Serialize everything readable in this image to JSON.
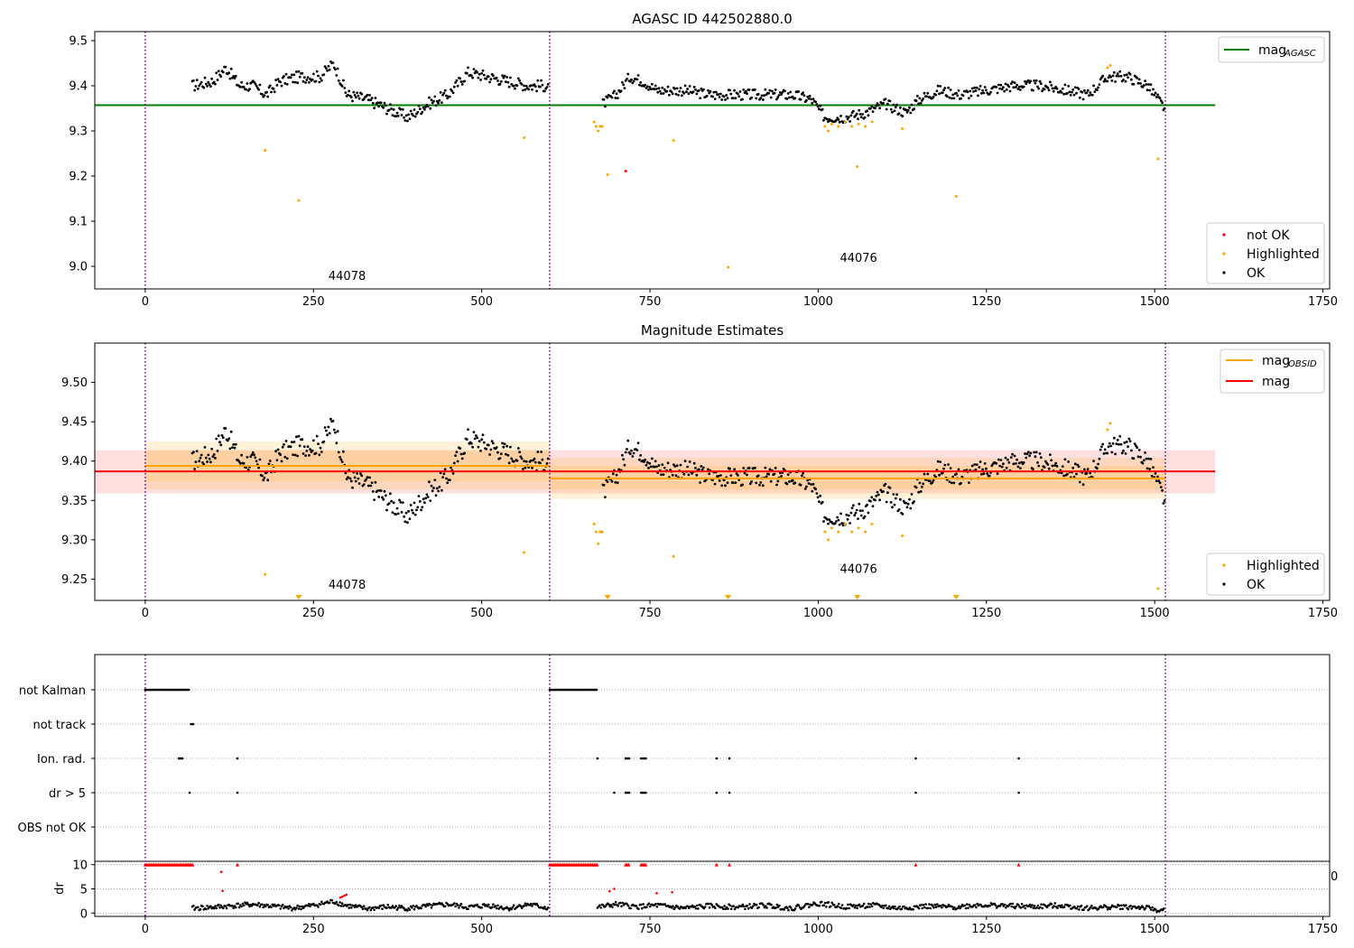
{
  "chart_data": [
    {
      "type": "scatter",
      "title": "AGASC ID 442502880.0",
      "xlim": [
        -75,
        1760
      ],
      "ylim": [
        8.95,
        9.52
      ],
      "xticks": [
        0,
        250,
        500,
        750,
        1000,
        1250,
        1500,
        1750
      ],
      "yticks": [
        9.0,
        9.1,
        9.2,
        9.3,
        9.4,
        9.5
      ],
      "ytick_labels": [
        "9.0",
        "9.1",
        "9.2",
        "9.3",
        "9.4",
        "9.5"
      ],
      "obs_boundaries": [
        0,
        601,
        1516
      ],
      "hlines": [
        {
          "name": "mag_AGASC",
          "label_main": "mag",
          "label_sub": "AGASC",
          "y": 9.357,
          "x": [
            -75,
            1590
          ],
          "color": "#008000"
        }
      ],
      "annotations": [
        {
          "text": "44078",
          "x": 300,
          "y": 8.97
        },
        {
          "text": "44076",
          "x": 1060,
          "y": 9.01
        }
      ],
      "legend_top": [
        "mag_AGASC"
      ],
      "legend_bottom": [
        {
          "label": "not OK",
          "color": "#ff0000"
        },
        {
          "label": "Highlighted",
          "color": "#ffa500"
        },
        {
          "label": "OK",
          "color": "#000000"
        }
      ],
      "series": [
        {
          "name": "OK",
          "color": "#000000",
          "segments": [
            {
              "x": [
                70,
                100,
                120,
                140,
                160,
                180,
                200,
                230,
                260,
                280,
                300,
                330,
                360,
                390,
                420,
                450,
                480,
                510,
                540,
                570,
                600
              ],
              "y": [
                9.4,
                9.41,
                9.44,
                9.4,
                9.4,
                9.38,
                9.41,
                9.42,
                9.42,
                9.45,
                9.38,
                9.37,
                9.35,
                9.33,
                9.36,
                9.38,
                9.43,
                9.42,
                9.41,
                9.4,
                9.4
              ],
              "jitter": 0.013,
              "step": 1.7
            },
            {
              "x": [
                680,
                700,
                720,
                740,
                760,
                800,
                840,
                880,
                920,
                960,
                990,
                1010,
                1040,
                1070,
                1100,
                1130,
                1150,
                1180,
                1210,
                1250,
                1290,
                1330,
                1370,
                1400,
                1430,
                1460,
                1490,
                1515
              ],
              "y": [
                9.36,
                9.38,
                9.42,
                9.41,
                9.39,
                9.39,
                9.38,
                9.38,
                9.38,
                9.38,
                9.37,
                9.33,
                9.33,
                9.34,
                9.36,
                9.34,
                9.37,
                9.39,
                9.38,
                9.39,
                9.4,
                9.4,
                9.39,
                9.38,
                9.42,
                9.42,
                9.4,
                9.35
              ],
              "jitter": 0.012,
              "step": 1.7
            }
          ]
        },
        {
          "name": "Highlighted",
          "color": "#ffa500",
          "x": [
            178,
            228,
            563,
            667,
            670,
            673,
            676,
            679,
            687,
            785,
            866,
            1010,
            1015,
            1020,
            1030,
            1040,
            1050,
            1060,
            1070,
            1080,
            1125,
            1058,
            1205,
            1430,
            1434,
            1505
          ],
          "y": [
            9.257,
            9.146,
            9.285,
            9.32,
            9.31,
            9.3,
            9.31,
            9.31,
            9.203,
            9.279,
            8.998,
            9.31,
            9.3,
            9.315,
            9.31,
            9.32,
            9.31,
            9.315,
            9.31,
            9.32,
            9.305,
            9.221,
            9.155,
            9.44,
            9.445,
            9.238
          ]
        },
        {
          "name": "not OK",
          "color": "#ff0000",
          "x": [
            714
          ],
          "y": [
            9.211
          ]
        }
      ]
    },
    {
      "type": "scatter",
      "title": "Magnitude Estimates",
      "xlim": [
        -75,
        1760
      ],
      "ylim": [
        9.223,
        9.55
      ],
      "xticks": [
        0,
        250,
        500,
        750,
        1000,
        1250,
        1500,
        1750
      ],
      "yticks": [
        9.25,
        9.3,
        9.35,
        9.4,
        9.45,
        9.5
      ],
      "ytick_labels": [
        "9.25",
        "9.30",
        "9.35",
        "9.40",
        "9.45",
        "9.50"
      ],
      "obs_boundaries": [
        0,
        601,
        1516
      ],
      "bands": [
        {
          "x": [
            -75,
            1590
          ],
          "y": [
            9.359,
            9.414
          ],
          "color": "#ff0000",
          "opacity": 0.12
        },
        {
          "x": [
            0,
            601
          ],
          "y": [
            9.364,
            9.425
          ],
          "color": "#ffa500",
          "opacity": 0.15
        },
        {
          "x": [
            0,
            601
          ],
          "y": [
            9.374,
            9.413
          ],
          "color": "#ffa500",
          "opacity": 0.15
        },
        {
          "x": [
            601,
            1516
          ],
          "y": [
            9.352,
            9.404
          ],
          "color": "#ffa500",
          "opacity": 0.15
        },
        {
          "x": [
            601,
            1516
          ],
          "y": [
            9.364,
            9.394
          ],
          "color": "#ffa500",
          "opacity": 0.15
        }
      ],
      "hlines": [
        {
          "name": "mag",
          "y": 9.387,
          "x": [
            -75,
            1590
          ],
          "color": "#ff0000"
        },
        {
          "name": "mag_OBSID_1",
          "y": 9.394,
          "x": [
            0,
            601
          ],
          "color": "#ffa500"
        },
        {
          "name": "mag_OBSID_2",
          "y": 9.378,
          "x": [
            601,
            1516
          ],
          "color": "#ffa500"
        }
      ],
      "annotations": [
        {
          "text": "44078",
          "x": 300,
          "y": 9.238
        },
        {
          "text": "44076",
          "x": 1060,
          "y": 9.258
        }
      ],
      "legend_top": [
        {
          "label_main": "mag",
          "label_sub": "OBSID",
          "color": "#ffa500"
        },
        {
          "label_main": "mag",
          "label_sub": "",
          "color": "#ff0000"
        }
      ],
      "legend_bottom": [
        {
          "label": "Highlighted",
          "color": "#ffa500"
        },
        {
          "label": "OK",
          "color": "#000000"
        }
      ],
      "offscale_markers": [
        228,
        687,
        866,
        1058,
        1205
      ],
      "series": [
        {
          "name": "OK",
          "color": "#000000",
          "segments": [
            {
              "x": [
                70,
                100,
                120,
                140,
                160,
                180,
                200,
                230,
                260,
                280,
                300,
                330,
                360,
                390,
                420,
                450,
                480,
                510,
                540,
                570,
                600
              ],
              "y": [
                9.4,
                9.41,
                9.44,
                9.4,
                9.4,
                9.38,
                9.41,
                9.42,
                9.42,
                9.45,
                9.38,
                9.37,
                9.35,
                9.33,
                9.36,
                9.38,
                9.43,
                9.42,
                9.41,
                9.4,
                9.4
              ],
              "jitter": 0.013,
              "step": 1.7
            },
            {
              "x": [
                680,
                700,
                720,
                740,
                760,
                800,
                840,
                880,
                920,
                960,
                990,
                1010,
                1040,
                1070,
                1100,
                1130,
                1150,
                1180,
                1210,
                1250,
                1290,
                1330,
                1370,
                1400,
                1430,
                1460,
                1490,
                1515
              ],
              "y": [
                9.36,
                9.38,
                9.42,
                9.41,
                9.39,
                9.39,
                9.38,
                9.38,
                9.38,
                9.38,
                9.37,
                9.33,
                9.33,
                9.34,
                9.36,
                9.34,
                9.37,
                9.39,
                9.38,
                9.39,
                9.4,
                9.4,
                9.39,
                9.38,
                9.42,
                9.42,
                9.4,
                9.35
              ],
              "jitter": 0.012,
              "step": 1.7
            }
          ]
        },
        {
          "name": "Highlighted",
          "color": "#ffa500",
          "x": [
            178,
            563,
            667,
            670,
            673,
            676,
            679,
            785,
            1010,
            1015,
            1020,
            1030,
            1040,
            1050,
            1060,
            1070,
            1080,
            1125,
            1430,
            1434,
            1505
          ],
          "y": [
            9.256,
            9.284,
            9.32,
            9.31,
            9.295,
            9.31,
            9.31,
            9.279,
            9.31,
            9.3,
            9.315,
            9.31,
            9.32,
            9.31,
            9.315,
            9.31,
            9.32,
            9.305,
            9.44,
            9.448,
            9.238
          ]
        }
      ]
    },
    {
      "type": "scatter",
      "title": "",
      "xlim": [
        -75,
        1760
      ],
      "xticks": [
        0,
        250,
        500,
        750,
        1000,
        1250,
        1500,
        1750
      ],
      "obs_boundaries": [
        0,
        601,
        1516
      ],
      "flag_rows": [
        {
          "label": "not Kalman",
          "points": [
            [
              0,
              65
            ],
            [
              601,
              672
            ]
          ]
        },
        {
          "label": "not track",
          "points": [
            [
              68,
              72
            ]
          ]
        },
        {
          "label": "Ion. rad.",
          "points": [
            [
              50,
              56
            ],
            [
              137,
              137
            ],
            [
              672,
              672
            ],
            [
              714,
              720
            ],
            [
              737,
              745
            ],
            [
              849,
              849
            ],
            [
              868,
              868
            ],
            [
              1145,
              1145
            ],
            [
              1298,
              1298
            ]
          ]
        },
        {
          "label": "dr > 5",
          "points": [
            [
              66,
              66
            ],
            [
              137,
              137
            ],
            [
              697,
              697
            ],
            [
              714,
              720
            ],
            [
              737,
              745
            ],
            [
              849,
              849
            ],
            [
              868,
              868
            ],
            [
              1145,
              1145
            ],
            [
              1298,
              1298
            ]
          ]
        },
        {
          "label": "OBS not OK",
          "points": []
        }
      ],
      "dr_panel": {
        "ylabel": "dr",
        "ylim": [
          -0.5,
          10.5
        ],
        "yticks": [
          0,
          5,
          10
        ],
        "ytick_labels": [
          "0",
          "5",
          "10"
        ],
        "clip_value": 10,
        "clipped_ranges": [
          [
            0,
            72
          ],
          [
            137,
            137
          ],
          [
            601,
            672
          ],
          [
            714,
            720
          ],
          [
            737,
            745
          ],
          [
            849,
            849
          ],
          [
            868,
            868
          ],
          [
            1145,
            1145
          ],
          [
            1298,
            1298
          ]
        ],
        "red_points": [
          [
            115,
            4.6
          ],
          [
            113,
            8.5
          ],
          [
            290,
            3.2
          ],
          [
            293,
            3.4
          ],
          [
            296,
            3.6
          ],
          [
            299,
            3.8
          ],
          [
            690,
            4.5
          ],
          [
            697,
            5.0
          ],
          [
            760,
            4.1
          ],
          [
            783,
            4.3
          ]
        ],
        "black_segments": [
          {
            "x": [
              70,
              100,
              130,
              160,
              190,
              220,
              250,
              280,
              300,
              330,
              360,
              390,
              420,
              450,
              480,
              510,
              540,
              570,
              600
            ],
            "y": [
              1.0,
              1.2,
              1.5,
              1.8,
              1.4,
              1.0,
              1.6,
              2.4,
              1.5,
              0.9,
              1.3,
              1.0,
              1.4,
              1.8,
              1.2,
              1.6,
              1.0,
              1.8,
              1.0
            ]
          },
          {
            "x": [
              672,
              700,
              730,
              760,
              800,
              840,
              880,
              920,
              960,
              1000,
              1040,
              1080,
              1120,
              1160,
              1200,
              1240,
              1280,
              1320,
              1360,
              1400,
              1440,
              1480,
              1515
            ],
            "y": [
              1.2,
              1.8,
              1.3,
              1.6,
              1.0,
              1.5,
              1.2,
              1.6,
              1.0,
              2.0,
              1.3,
              1.6,
              1.0,
              1.4,
              1.2,
              1.7,
              1.5,
              1.3,
              1.6,
              1.0,
              1.3,
              1.2,
              0.4
            ]
          }
        ],
        "stray_label": "0"
      }
    }
  ]
}
